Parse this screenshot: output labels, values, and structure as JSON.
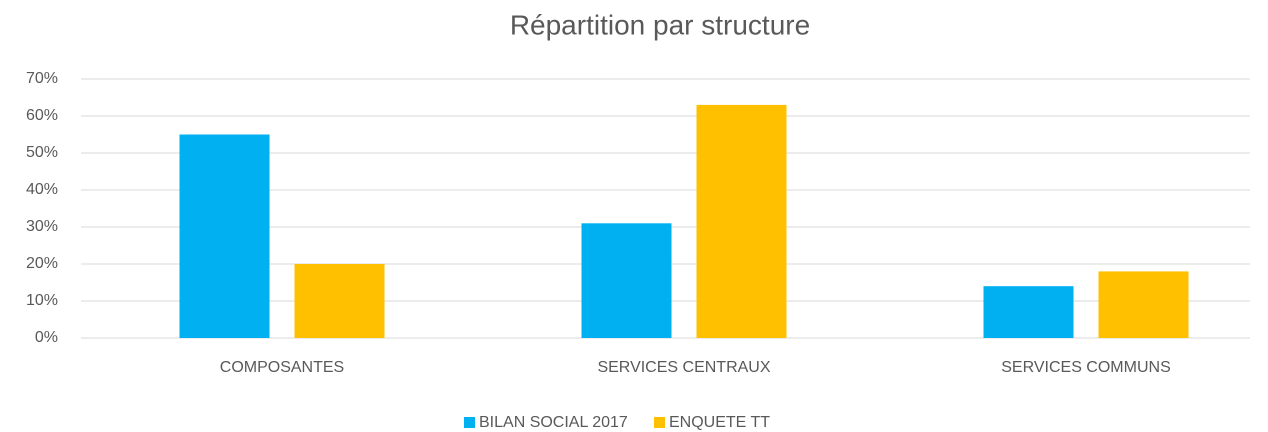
{
  "chart_data": {
    "type": "bar",
    "title": "Répartition par structure",
    "categories": [
      "COMPOSANTES",
      "SERVICES CENTRAUX",
      "SERVICES COMMUNS"
    ],
    "series": [
      {
        "name": "BILAN SOCIAL 2017",
        "color": "#00b0f0",
        "values": [
          55,
          31,
          14
        ]
      },
      {
        "name": "ENQUETE TT",
        "color": "#ffc000",
        "values": [
          20,
          63,
          18
        ]
      }
    ],
    "ylim": [
      0,
      70
    ],
    "yticks": [
      {
        "value": 0,
        "label": "0%"
      },
      {
        "value": 10,
        "label": "10%"
      },
      {
        "value": 20,
        "label": "20%"
      },
      {
        "value": 30,
        "label": "30%"
      },
      {
        "value": 40,
        "label": "40%"
      },
      {
        "value": 50,
        "label": "50%"
      },
      {
        "value": 60,
        "label": "60%"
      },
      {
        "value": 70,
        "label": "70%"
      }
    ],
    "grid": true,
    "legend": "bottom"
  }
}
